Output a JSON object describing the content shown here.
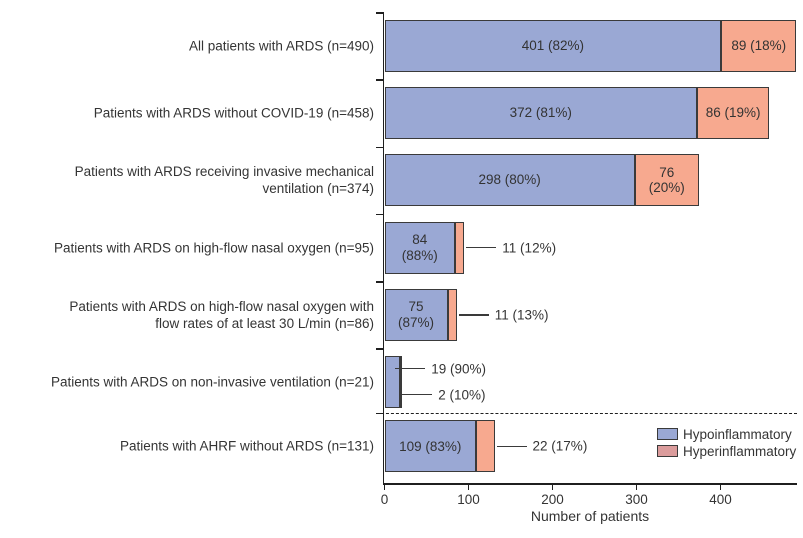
{
  "figure": {
    "colors": {
      "hypo_fill": "#9aa8d4",
      "hyper_fill": "#f7a98f",
      "legend_hypo_fill": "#9aa8d4",
      "legend_hyper_fill": "#db9c9c",
      "segment_border": "#3a3a3a",
      "axis": "#1f1f1f",
      "text": "#343434"
    },
    "legend": [
      {
        "label": "Hypoinflammatory",
        "color": "#9aa8d4"
      },
      {
        "label": "Hyperinflammatory",
        "color": "#db9c9c"
      }
    ]
  },
  "chart_data": {
    "type": "bar",
    "orientation": "horizontal",
    "stacked": true,
    "title": "",
    "xlabel": "Number of patients",
    "ylabel": "",
    "xlim": [
      0,
      490
    ],
    "x_ticks": [
      0,
      100,
      200,
      300,
      400
    ],
    "grid": false,
    "legend_position": "bottom-right",
    "categories": [
      "All patients with ARDS (n=490)",
      "Patients with ARDS without COVID-19 (n=458)",
      "Patients with ARDS receiving invasive mechanical ventilation (n=374)",
      "Patients with ARDS on high-flow nasal oxygen (n=95)",
      "Patients with ARDS on high-flow nasal oxygen with flow rates of at least 30 L/min (n=86)",
      "Patients with ARDS on non-invasive ventilation (n=21)",
      "Patients with AHRF without ARDS (n=131)"
    ],
    "series": [
      {
        "name": "Hypoinflammatory",
        "values": [
          401,
          372,
          298,
          84,
          75,
          19,
          109
        ]
      },
      {
        "name": "Hyperinflammatory",
        "values": [
          89,
          86,
          76,
          11,
          11,
          2,
          22
        ]
      }
    ],
    "divider_after_row": 5,
    "rows": [
      {
        "label_lines": [
          "All patients with ARDS (n=490)"
        ],
        "n": 490,
        "hypo": {
          "value": 401,
          "label_lines": [
            "401 (82%)"
          ],
          "placement": "inside"
        },
        "hyper": {
          "value": 89,
          "label_lines": [
            "89 (18%)"
          ],
          "placement": "inside"
        }
      },
      {
        "label_lines": [
          "Patients with ARDS without COVID-19 (n=458)"
        ],
        "n": 458,
        "hypo": {
          "value": 372,
          "label_lines": [
            "372 (81%)"
          ],
          "placement": "inside"
        },
        "hyper": {
          "value": 86,
          "label_lines": [
            "86 (19%)"
          ],
          "placement": "inside"
        }
      },
      {
        "label_lines": [
          "Patients with ARDS receiving invasive mechanical",
          "ventilation (n=374)"
        ],
        "n": 374,
        "hypo": {
          "value": 298,
          "label_lines": [
            "298 (80%)"
          ],
          "placement": "inside"
        },
        "hyper": {
          "value": 76,
          "label_lines": [
            "76",
            "(20%)"
          ],
          "placement": "inside"
        }
      },
      {
        "label_lines": [
          "Patients with ARDS on high-flow nasal oxygen (n=95)"
        ],
        "n": 95,
        "hypo": {
          "value": 84,
          "label_lines": [
            "84",
            "(88%)"
          ],
          "placement": "inside"
        },
        "hyper": {
          "value": 11,
          "label_lines": [
            "11 (12%)"
          ],
          "placement": "leader"
        }
      },
      {
        "label_lines": [
          "Patients with ARDS on high-flow nasal oxygen with",
          "flow rates of at least 30 L/min (n=86)"
        ],
        "n": 86,
        "hypo": {
          "value": 75,
          "label_lines": [
            "75",
            "(87%)"
          ],
          "placement": "inside"
        },
        "hyper": {
          "value": 11,
          "label_lines": [
            "11 (13%)"
          ],
          "placement": "leader"
        }
      },
      {
        "label_lines": [
          "Patients with ARDS on non-invasive ventilation (n=21)"
        ],
        "n": 21,
        "hypo": {
          "value": 19,
          "label_lines": [
            "19 (90%)"
          ],
          "placement": "leader-upper"
        },
        "hyper": {
          "value": 2,
          "label_lines": [
            "2 (10%)"
          ],
          "placement": "leader-lower"
        }
      },
      {
        "label_lines": [
          "Patients with AHRF without ARDS (n=131)"
        ],
        "n": 131,
        "hypo": {
          "value": 109,
          "label_lines": [
            "109 (83%)"
          ],
          "placement": "inside"
        },
        "hyper": {
          "value": 22,
          "label_lines": [
            "22 (17%)"
          ],
          "placement": "leader"
        }
      }
    ]
  }
}
